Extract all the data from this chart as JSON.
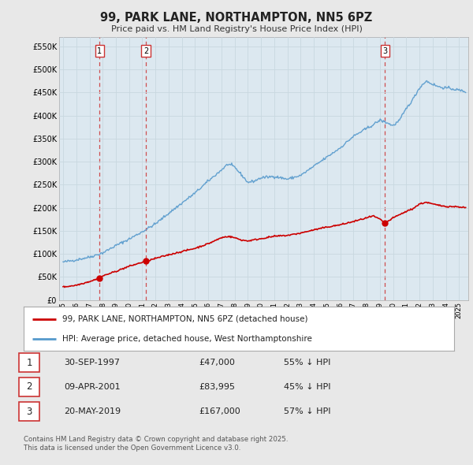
{
  "title": "99, PARK LANE, NORTHAMPTON, NN5 6PZ",
  "subtitle": "Price paid vs. HM Land Registry's House Price Index (HPI)",
  "ylim": [
    0,
    570000
  ],
  "yticks": [
    0,
    50000,
    100000,
    150000,
    200000,
    250000,
    300000,
    350000,
    400000,
    450000,
    500000,
    550000
  ],
  "ytick_labels": [
    "£0",
    "£50K",
    "£100K",
    "£150K",
    "£200K",
    "£250K",
    "£300K",
    "£350K",
    "£400K",
    "£450K",
    "£500K",
    "£550K"
  ],
  "background_color": "#e8e8e8",
  "plot_bg_color": "#dce8f0",
  "red_color": "#cc0000",
  "blue_color": "#5599cc",
  "grid_color": "#c8d8e0",
  "vline_color": "#cc3333",
  "sale_dates": [
    1997.75,
    2001.27,
    2019.38
  ],
  "sale_prices": [
    47000,
    83995,
    167000
  ],
  "sale_labels": [
    "1",
    "2",
    "3"
  ],
  "xmin": 1994.7,
  "xmax": 2025.7,
  "legend_entries": [
    "99, PARK LANE, NORTHAMPTON, NN5 6PZ (detached house)",
    "HPI: Average price, detached house, West Northamptonshire"
  ],
  "table_data": [
    [
      "1",
      "30-SEP-1997",
      "£47,000",
      "55% ↓ HPI"
    ],
    [
      "2",
      "09-APR-2001",
      "£83,995",
      "45% ↓ HPI"
    ],
    [
      "3",
      "20-MAY-2019",
      "£167,000",
      "57% ↓ HPI"
    ]
  ],
  "footnote": "Contains HM Land Registry data © Crown copyright and database right 2025.\nThis data is licensed under the Open Government Licence v3.0."
}
